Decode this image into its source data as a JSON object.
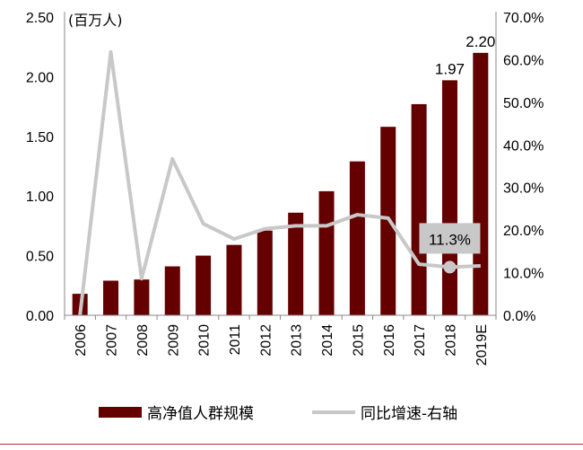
{
  "chart_data": {
    "type": "bar",
    "title": "",
    "unit_label": "(百万人)",
    "categories": [
      "2006",
      "2007",
      "2008",
      "2009",
      "2010",
      "2011",
      "2012",
      "2013",
      "2014",
      "2015",
      "2016",
      "2017",
      "2018",
      "2019E"
    ],
    "series": [
      {
        "name": "高净值人群规模",
        "type": "bar",
        "axis": "left",
        "color": "#640000",
        "values": [
          0.18,
          0.29,
          0.3,
          0.41,
          0.5,
          0.59,
          0.71,
          0.86,
          1.04,
          1.29,
          1.58,
          1.77,
          1.97,
          2.2
        ]
      },
      {
        "name": "同比增速-右轴",
        "type": "line",
        "axis": "right",
        "color": "#c8c8c8",
        "values": [
          0.0,
          61.8,
          8.6,
          36.7,
          21.5,
          17.9,
          20.3,
          21.0,
          21.0,
          23.6,
          22.8,
          12.0,
          11.3,
          11.6
        ]
      }
    ],
    "data_labels": [
      {
        "series": 0,
        "index": 12,
        "text": "1.97"
      },
      {
        "series": 0,
        "index": 13,
        "text": "2.20"
      },
      {
        "series": 1,
        "index": 12,
        "text": "11.3%"
      }
    ],
    "left_axis": {
      "ylim": [
        0,
        2.5
      ],
      "ticks": [
        "0.00",
        "0.50",
        "1.00",
        "1.50",
        "2.00",
        "2.50"
      ]
    },
    "right_axis": {
      "ylim": [
        0,
        70
      ],
      "ticks": [
        "0.0%",
        "10.0%",
        "20.0%",
        "30.0%",
        "40.0%",
        "50.0%",
        "60.0%",
        "70.0%"
      ]
    },
    "grid": false,
    "legend_position": "bottom"
  }
}
